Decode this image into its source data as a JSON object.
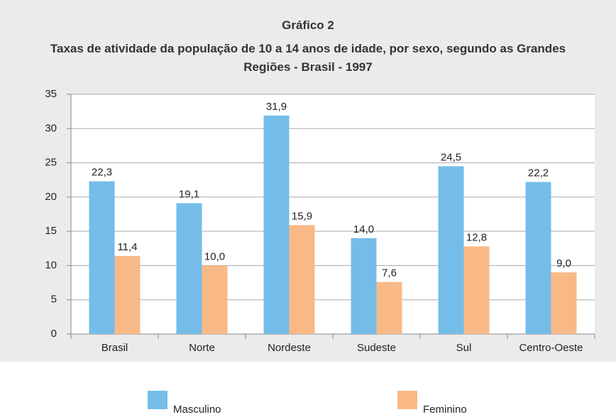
{
  "chart_data": {
    "type": "bar",
    "title": "Gráfico 2",
    "subtitle": "Taxas de atividade da população de 10 a 14 anos de idade, por sexo, segundo as Grandes Regiões - Brasil - 1997",
    "categories": [
      "Brasil",
      "Norte",
      "Nordeste",
      "Sudeste",
      "Sul",
      "Centro-Oeste"
    ],
    "series": [
      {
        "name": "Masculino",
        "color": "#74bde8",
        "values": [
          22.3,
          19.1,
          31.9,
          14.0,
          24.5,
          22.2
        ],
        "value_labels": [
          "22,3",
          "19,1",
          "31,9",
          "14,0",
          "24,5",
          "22,2"
        ]
      },
      {
        "name": "Feminino",
        "color": "#f9b987",
        "values": [
          11.4,
          10.0,
          15.9,
          7.6,
          12.8,
          9.0
        ],
        "value_labels": [
          "11,4",
          "10,0",
          "15,9",
          "7,6",
          "12,8",
          "9,0"
        ]
      }
    ],
    "ylim": [
      0,
      35
    ],
    "yticks": [
      0,
      5,
      10,
      15,
      20,
      25,
      30,
      35
    ],
    "grid": true,
    "legend": "bottom"
  }
}
